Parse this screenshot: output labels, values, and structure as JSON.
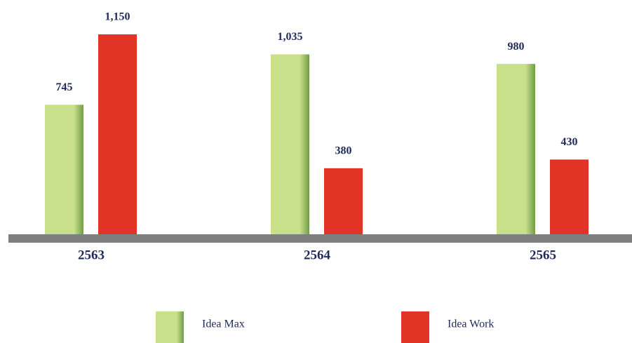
{
  "chart_data": {
    "type": "bar",
    "categories": [
      "2563",
      "2564",
      "2565"
    ],
    "series": [
      {
        "name": "Idea Max",
        "color": "#c9e08b",
        "values": [
          745,
          1035,
          980
        ],
        "value_labels": [
          "745",
          "1,035",
          "980"
        ]
      },
      {
        "name": "Idea Work",
        "color": "#e13326",
        "values": [
          1150,
          380,
          430
        ],
        "value_labels": [
          "1,150",
          "380",
          "430"
        ]
      }
    ]
  }
}
